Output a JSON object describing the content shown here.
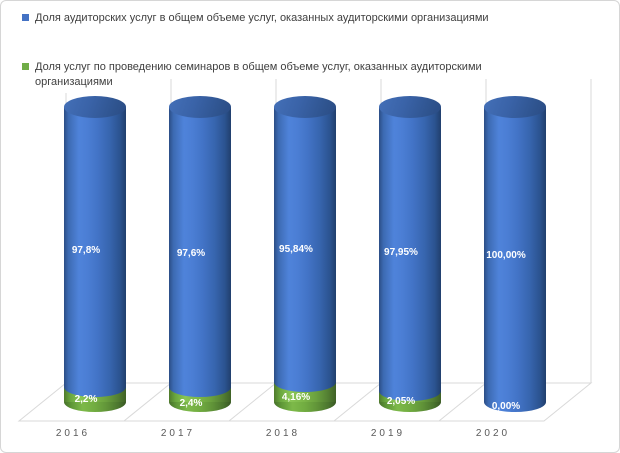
{
  "chart_data": {
    "type": "bar",
    "subtype": "3d-cylinder-stacked-100pct",
    "title": "",
    "xlabel": "",
    "ylabel": "",
    "ylim": [
      0,
      100
    ],
    "legend_position": "top-left",
    "gridlines": "vertical-category-separators",
    "categories": [
      "2016",
      "2017",
      "2018",
      "2019",
      "2020"
    ],
    "series": [
      {
        "name": "Доля аудиторских услуг в общем объеме услуг, оказанных аудиторскими организациями",
        "color": "#4472C4",
        "values": [
          97.8,
          97.6,
          95.84,
          97.95,
          100.0
        ],
        "labels": [
          "97,8%",
          "97,6%",
          "95,84%",
          "97,95%",
          "100,00%"
        ]
      },
      {
        "name": "Доля услуг по проведению семинаров в общем объеме услуг, оказанных аудиторскими организациями",
        "color": "#70AD47",
        "values": [
          2.2,
          2.4,
          4.16,
          2.05,
          0.0
        ],
        "labels": [
          "2,2%",
          "2,4%",
          "4,16%",
          "2,05%",
          "0,00%"
        ]
      }
    ]
  },
  "colors": {
    "label_text": "#FFFFFF",
    "axis_text": "#595959",
    "legend_text": "#3F3F3F",
    "gridline": "#D9D9D9",
    "chart_border": "#D6D6D6"
  }
}
